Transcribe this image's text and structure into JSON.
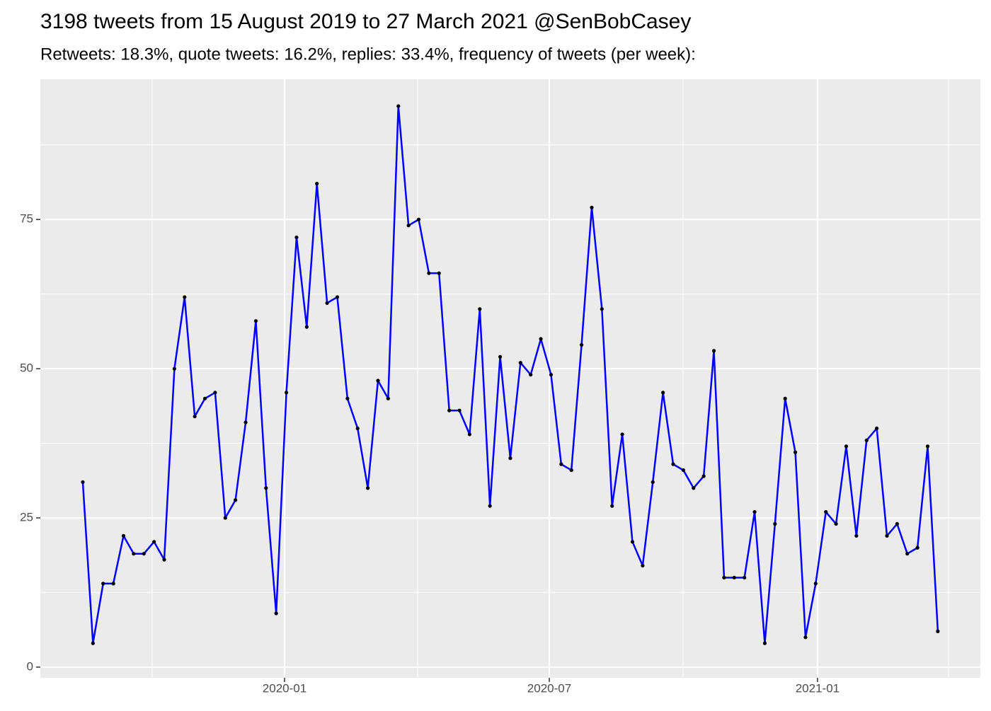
{
  "chart_data": {
    "type": "line",
    "title": "3198 tweets from 15 August 2019 to 27 March 2021 @SenBobCasey",
    "subtitle": "Retweets: 18.3%, quote tweets: 16.2%, replies: 33.4%, frequency of tweets (per week):",
    "series": [
      {
        "color": "#0000ff",
        "point_color": "#000000",
        "values": [
          31,
          4,
          14,
          14,
          22,
          19,
          19,
          21,
          18,
          50,
          62,
          42,
          45,
          46,
          25,
          28,
          41,
          58,
          30,
          9,
          46,
          72,
          57,
          81,
          61,
          62,
          45,
          40,
          30,
          48,
          45,
          94,
          74,
          75,
          66,
          66,
          43,
          43,
          39,
          60,
          27,
          52,
          35,
          51,
          49,
          55,
          49,
          34,
          33,
          54,
          77,
          60,
          27,
          39,
          21,
          17,
          31,
          46,
          34,
          33,
          30,
          32,
          53,
          15,
          15,
          15,
          26,
          4,
          24,
          45,
          36,
          5,
          14,
          26,
          24,
          37,
          22,
          38,
          40,
          22,
          24,
          19,
          20,
          37,
          6
        ]
      }
    ],
    "xlim": [
      -4.17,
      88.18
    ],
    "xticks": [
      {
        "value": 19.82,
        "label": "2020-01"
      },
      {
        "value": 45.83,
        "label": "2020-07"
      },
      {
        "value": 72.18,
        "label": "2021-01"
      }
    ],
    "x_minor_ticks": [
      6.81,
      32.89,
      58.97,
      85.05
    ],
    "ylim": [
      -1.78,
      98.5
    ],
    "yticks": [
      0,
      25,
      50,
      75
    ],
    "y_minor_ticks": [
      12.5,
      37.5,
      62.5,
      87.5
    ],
    "grid": true
  }
}
